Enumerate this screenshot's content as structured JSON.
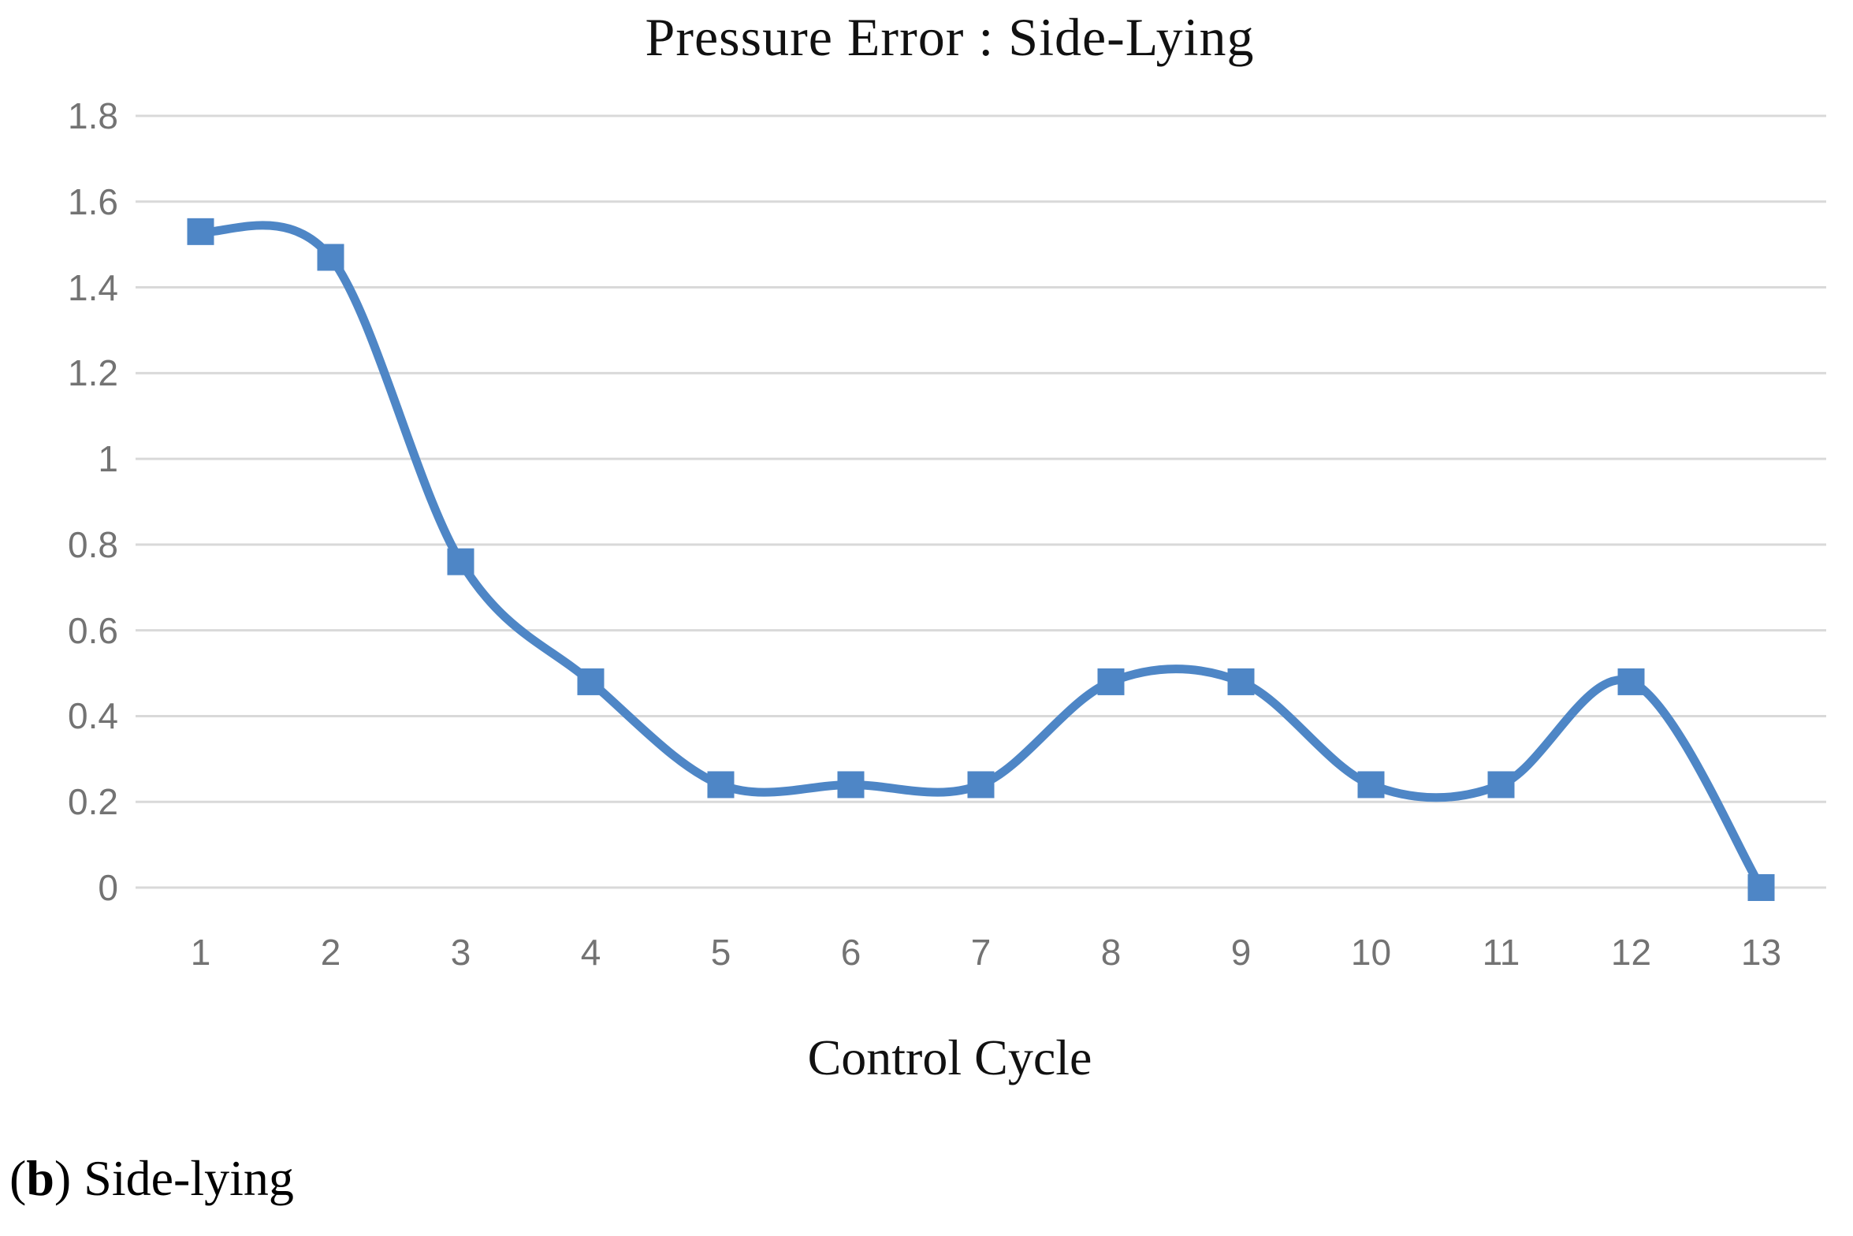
{
  "chart_data": {
    "type": "line",
    "title": "Pressure Error : Side-Lying",
    "xlabel": "Control Cycle",
    "ylabel": "",
    "series_name": "Pressure Error",
    "x": [
      1,
      2,
      3,
      4,
      5,
      6,
      7,
      8,
      9,
      10,
      11,
      12,
      13
    ],
    "x_ticks": [
      "1",
      "2",
      "3",
      "4",
      "5",
      "6",
      "7",
      "8",
      "9",
      "10",
      "11",
      "12",
      "13"
    ],
    "values": [
      1.53,
      1.47,
      0.76,
      0.48,
      0.24,
      0.24,
      0.24,
      0.48,
      0.48,
      0.24,
      0.24,
      0.48,
      0.0
    ],
    "ylim": [
      0,
      1.8
    ],
    "y_ticks": [
      {
        "label": "1.8",
        "value": 1.8
      },
      {
        "label": "1.6",
        "value": 1.6
      },
      {
        "label": "1.4",
        "value": 1.4
      },
      {
        "label": "1.2",
        "value": 1.2
      },
      {
        "label": "1",
        "value": 1.0
      },
      {
        "label": "0.8",
        "value": 0.8
      },
      {
        "label": "0.6",
        "value": 0.6
      },
      {
        "label": "0.4",
        "value": 0.4
      },
      {
        "label": "0.2",
        "value": 0.2
      },
      {
        "label": "0",
        "value": 0.0
      }
    ],
    "grid": "horizontal",
    "legend": "none",
    "smooth": true,
    "marker": "square",
    "line_color": "#4e86c6",
    "marker_color": "#4e86c6",
    "gridline_color": "#d9d9d9",
    "tick_label_color": "#737373",
    "title_color": "#111111"
  },
  "caption": {
    "open": "(",
    "letter": "b",
    "close": ")",
    "text": " Side-lying"
  }
}
